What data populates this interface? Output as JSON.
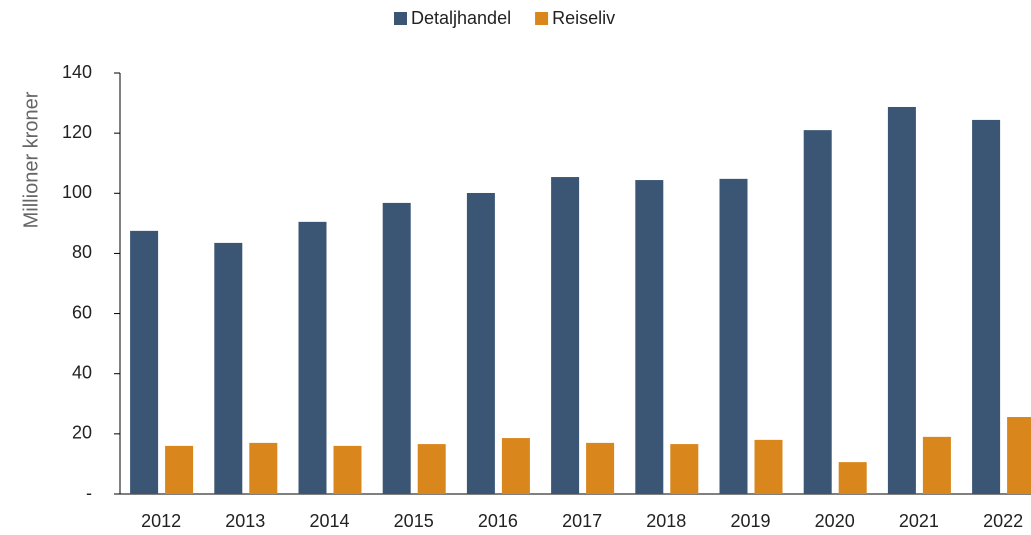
{
  "chart_data": {
    "type": "bar",
    "y_label": "Millioner kroner",
    "categories": [
      "2012",
      "2013",
      "2014",
      "2015",
      "2016",
      "2017",
      "2018",
      "2019",
      "2020",
      "2021",
      "2022"
    ],
    "series": [
      {
        "name": "Detaljhandel",
        "color": "#3a5674",
        "values": [
          87.5,
          83.5,
          90.5,
          96.8,
          100.1,
          105.4,
          104.4,
          104.8,
          121,
          128.7,
          124.4
        ]
      },
      {
        "name": "Reiseliv",
        "color": "#d9861c",
        "values": [
          16,
          17,
          16,
          16.6,
          18.6,
          17,
          16.6,
          18,
          10.6,
          19,
          25.6
        ]
      }
    ],
    "ylim": [
      0,
      140
    ],
    "yticks": [
      {
        "value": 0,
        "label": "-"
      },
      20,
      40,
      60,
      80,
      100,
      120,
      140
    ],
    "legend": "top"
  }
}
